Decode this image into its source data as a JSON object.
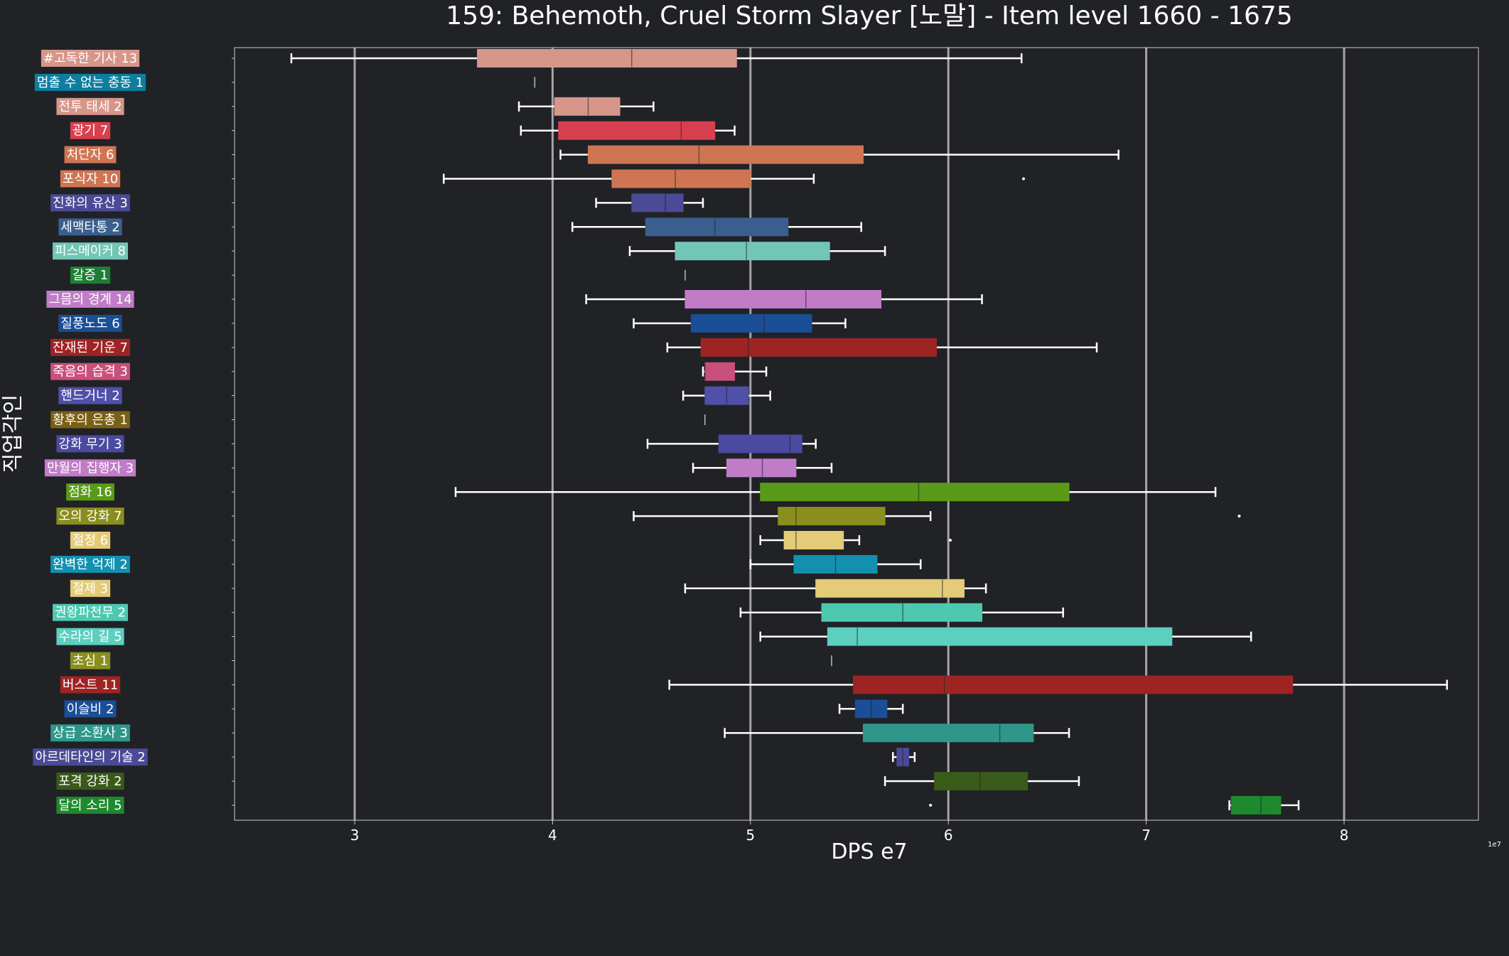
{
  "chart_data": {
    "type": "box",
    "title": "159: Behemoth, Cruel Storm Slayer [노말] - Item level 1660 - 1675",
    "xlabel": "DPS e7",
    "ylabel": "직업각인",
    "offset_label": "1e7",
    "xlim": [
      2.4,
      8.65
    ],
    "xticks": [
      3,
      4,
      5,
      6,
      7,
      8
    ],
    "grid": "vertical",
    "categories": [
      {
        "label": "#고독한 기사 13",
        "color": "#d7968a",
        "wlo": 2.68,
        "q1": 3.62,
        "med": 4.4,
        "q3": 4.93,
        "whi": 6.37,
        "fliers": []
      },
      {
        "label": "멈출 수 없는 충동 1",
        "color": "#0e7ea0",
        "wlo": 3.91,
        "q1": 3.91,
        "med": 3.91,
        "q3": 3.91,
        "whi": 3.91,
        "fliers": []
      },
      {
        "label": "전투 태세 2",
        "color": "#d7968a",
        "wlo": 3.83,
        "q1": 4.01,
        "med": 4.18,
        "q3": 4.34,
        "whi": 4.51,
        "fliers": []
      },
      {
        "label": "광기 7",
        "color": "#d9404f",
        "wlo": 3.84,
        "q1": 4.03,
        "med": 4.65,
        "q3": 4.82,
        "whi": 4.92,
        "fliers": []
      },
      {
        "label": "처단자 6",
        "color": "#cf7553",
        "wlo": 4.04,
        "q1": 4.18,
        "med": 4.74,
        "q3": 5.57,
        "whi": 6.86,
        "fliers": []
      },
      {
        "label": "포식자 10",
        "color": "#cf7553",
        "wlo": 3.45,
        "q1": 4.3,
        "med": 4.62,
        "q3": 5.0,
        "whi": 5.32,
        "fliers": [
          6.38
        ]
      },
      {
        "label": "진화의 유산 3",
        "color": "#4a4a96",
        "wlo": 4.22,
        "q1": 4.4,
        "med": 4.57,
        "q3": 4.66,
        "whi": 4.76,
        "fliers": []
      },
      {
        "label": "세맥타통 2",
        "color": "#3a5f8e",
        "wlo": 4.1,
        "q1": 4.47,
        "med": 4.82,
        "q3": 5.19,
        "whi": 5.56,
        "fliers": []
      },
      {
        "label": "피스메이커 8",
        "color": "#73c6b6",
        "wlo": 4.39,
        "q1": 4.62,
        "med": 4.98,
        "q3": 5.4,
        "whi": 5.68,
        "fliers": []
      },
      {
        "label": "갈증 1",
        "color": "#1e7e34",
        "wlo": 4.67,
        "q1": 4.67,
        "med": 4.67,
        "q3": 4.67,
        "whi": 4.67,
        "fliers": []
      },
      {
        "label": "그믐의 경계 14",
        "color": "#c07cc7",
        "wlo": 4.17,
        "q1": 4.67,
        "med": 5.28,
        "q3": 5.66,
        "whi": 6.17,
        "fliers": []
      },
      {
        "label": "질풍노도 6",
        "color": "#1a4e96",
        "wlo": 4.41,
        "q1": 4.7,
        "med": 5.07,
        "q3": 5.31,
        "whi": 5.48,
        "fliers": []
      },
      {
        "label": "잔재된 기운 7",
        "color": "#9e2424",
        "wlo": 4.58,
        "q1": 4.75,
        "med": 4.99,
        "q3": 5.94,
        "whi": 6.75,
        "fliers": []
      },
      {
        "label": "죽음의 습격 3",
        "color": "#c8507a",
        "wlo": 4.76,
        "q1": 4.77,
        "med": 4.77,
        "q3": 4.92,
        "whi": 5.08,
        "fliers": []
      },
      {
        "label": "핸드거너 2",
        "color": "#5050a8",
        "wlo": 4.66,
        "q1": 4.77,
        "med": 4.88,
        "q3": 4.99,
        "whi": 5.1,
        "fliers": []
      },
      {
        "label": "황후의 은총 1",
        "color": "#7a6015",
        "wlo": 4.77,
        "q1": 4.77,
        "med": 4.77,
        "q3": 4.77,
        "whi": 4.77,
        "fliers": []
      },
      {
        "label": "강화 무기 3",
        "color": "#4a4aa0",
        "wlo": 4.48,
        "q1": 4.84,
        "med": 5.2,
        "q3": 5.26,
        "whi": 5.33,
        "fliers": []
      },
      {
        "label": "만월의 집행자 3",
        "color": "#c07cc7",
        "wlo": 4.71,
        "q1": 4.88,
        "med": 5.06,
        "q3": 5.23,
        "whi": 5.41,
        "fliers": []
      },
      {
        "label": "점화 16",
        "color": "#5a9a18",
        "wlo": 3.51,
        "q1": 5.05,
        "med": 5.85,
        "q3": 6.61,
        "whi": 7.35,
        "fliers": []
      },
      {
        "label": "오의 강화 7",
        "color": "#8a8e1e",
        "wlo": 4.41,
        "q1": 5.14,
        "med": 5.23,
        "q3": 5.68,
        "whi": 5.91,
        "fliers": [
          7.47
        ]
      },
      {
        "label": "절정 6",
        "color": "#e3cb78",
        "wlo": 5.05,
        "q1": 5.17,
        "med": 5.23,
        "q3": 5.47,
        "whi": 5.55,
        "fliers": [
          6.01
        ]
      },
      {
        "label": "완벽한 억제 2",
        "color": "#1390b0",
        "wlo": 5.0,
        "q1": 5.22,
        "med": 5.43,
        "q3": 5.64,
        "whi": 5.86,
        "fliers": []
      },
      {
        "label": "절제 3",
        "color": "#e3cb78",
        "wlo": 4.67,
        "q1": 5.33,
        "med": 5.97,
        "q3": 6.08,
        "whi": 6.19,
        "fliers": []
      },
      {
        "label": "권왕파천무 2",
        "color": "#4ec9b0",
        "wlo": 4.95,
        "q1": 5.36,
        "med": 5.77,
        "q3": 6.17,
        "whi": 6.58,
        "fliers": []
      },
      {
        "label": "수라의 길 5",
        "color": "#5dcfbf",
        "wlo": 5.05,
        "q1": 5.39,
        "med": 5.54,
        "q3": 7.13,
        "whi": 7.53,
        "fliers": []
      },
      {
        "label": "초심 1",
        "color": "#8a8e1e",
        "wlo": 5.41,
        "q1": 5.41,
        "med": 5.41,
        "q3": 5.41,
        "whi": 5.41,
        "fliers": []
      },
      {
        "label": "버스트 11",
        "color": "#9e2424",
        "wlo": 4.59,
        "q1": 5.52,
        "med": 5.98,
        "q3": 7.74,
        "whi": 8.52,
        "fliers": []
      },
      {
        "label": "이슬비 2",
        "color": "#1a4e96",
        "wlo": 5.45,
        "q1": 5.53,
        "med": 5.61,
        "q3": 5.69,
        "whi": 5.77,
        "fliers": []
      },
      {
        "label": "상급 소환사 3",
        "color": "#2e978a",
        "wlo": 4.87,
        "q1": 5.57,
        "med": 6.26,
        "q3": 6.43,
        "whi": 6.61,
        "fliers": []
      },
      {
        "label": "아르데타인의 기술 2",
        "color": "#4a4a96",
        "wlo": 5.72,
        "q1": 5.74,
        "med": 5.77,
        "q3": 5.8,
        "whi": 5.83,
        "fliers": []
      },
      {
        "label": "포격 강화 2",
        "color": "#3a5a1a",
        "wlo": 5.68,
        "q1": 5.93,
        "med": 6.16,
        "q3": 6.4,
        "whi": 6.66,
        "fliers": []
      },
      {
        "label": "달의 소리 5",
        "color": "#1e8a2e",
        "wlo": 7.42,
        "q1": 7.43,
        "med": 7.58,
        "q3": 7.68,
        "whi": 7.77,
        "fliers": [
          5.91
        ]
      }
    ]
  }
}
